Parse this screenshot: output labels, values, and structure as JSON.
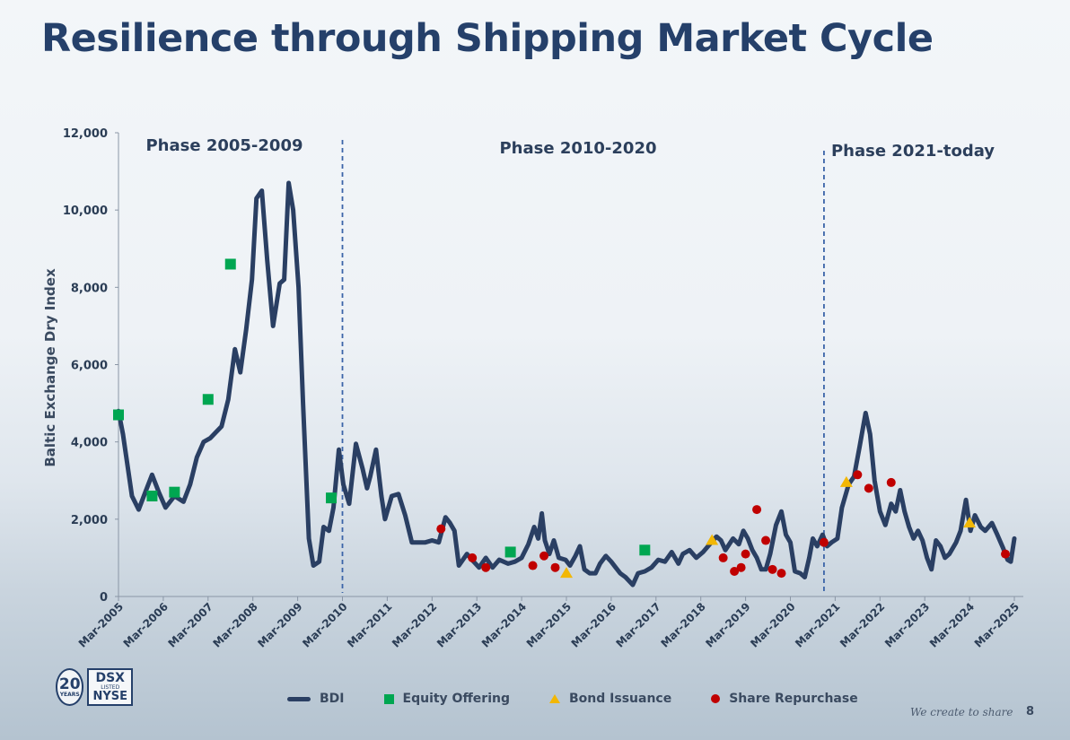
{
  "slide": {
    "title": "Resilience through Shipping Market Cycle",
    "footer_tagline": "We create to share",
    "page_number": "8"
  },
  "logo": {
    "number": "20",
    "years_label": "YEARS",
    "ticker": "DSX",
    "listed_label": "LISTED",
    "exchange": "NYSE"
  },
  "legend": [
    {
      "label": "BDI",
      "icon": "line-swatch"
    },
    {
      "label": "Equity Offering",
      "icon": "green-square"
    },
    {
      "label": "Bond Issuance",
      "icon": "yellow-triangle"
    },
    {
      "label": "Share Repurchase",
      "icon": "red-circle"
    }
  ],
  "colors": {
    "bdi_line": "#2a3f63",
    "equity": "#00a651",
    "bond": "#f2b705",
    "repurchase": "#c00000",
    "phase_divider": "#3b64a8"
  },
  "chart_data": {
    "type": "line",
    "title": "",
    "xlabel": "",
    "ylabel": "Baltic Exchange Dry Index",
    "xlim": [
      2005,
      2025
    ],
    "ylim": [
      0,
      12000
    ],
    "yticks": [
      0,
      2000,
      4000,
      6000,
      8000,
      10000,
      12000
    ],
    "ytick_labels": [
      "0",
      "2,000",
      "4,000",
      "6,000",
      "8,000",
      "10,000",
      "12,000"
    ],
    "xticks": [
      2005,
      2006,
      2007,
      2008,
      2009,
      2010,
      2011,
      2012,
      2013,
      2014,
      2015,
      2016,
      2017,
      2018,
      2019,
      2020,
      2021,
      2022,
      2023,
      2024,
      2025
    ],
    "xtick_labels": [
      "Mar-2005",
      "Mar-2006",
      "Mar-2007",
      "Mar-2008",
      "Mar-2009",
      "Mar-2010",
      "Mar-2011",
      "Mar-2012",
      "Mar-2013",
      "Mar-2014",
      "Mar-2015",
      "Mar-2016",
      "Mar-2017",
      "Mar-2018",
      "Mar-2019",
      "Mar-2020",
      "Mar-2021",
      "Mar-2022",
      "Mar-2023",
      "Mar-2024",
      "Mar-2025"
    ],
    "phases": [
      {
        "label": "Phase 2005-2009",
        "start": 2005.0,
        "end": 2010.0
      },
      {
        "label": "Phase 2010-2020",
        "start": 2010.0,
        "end": 2020.75
      },
      {
        "label": "Phase 2021-today",
        "start": 2020.75,
        "end": 2025.0
      }
    ],
    "phase_dividers": [
      2010.0,
      2020.75
    ],
    "series": [
      {
        "name": "BDI",
        "points": [
          [
            2005.0,
            4800
          ],
          [
            2005.1,
            4200
          ],
          [
            2005.3,
            2600
          ],
          [
            2005.45,
            2250
          ],
          [
            2005.6,
            2700
          ],
          [
            2005.75,
            3150
          ],
          [
            2005.9,
            2700
          ],
          [
            2006.05,
            2300
          ],
          [
            2006.25,
            2600
          ],
          [
            2006.45,
            2450
          ],
          [
            2006.6,
            2900
          ],
          [
            2006.75,
            3600
          ],
          [
            2006.9,
            4000
          ],
          [
            2007.05,
            4100
          ],
          [
            2007.3,
            4400
          ],
          [
            2007.45,
            5100
          ],
          [
            2007.6,
            6400
          ],
          [
            2007.72,
            5800
          ],
          [
            2007.85,
            6900
          ],
          [
            2007.98,
            8200
          ],
          [
            2008.08,
            10300
          ],
          [
            2008.2,
            10500
          ],
          [
            2008.32,
            8700
          ],
          [
            2008.45,
            7000
          ],
          [
            2008.6,
            8100
          ],
          [
            2008.7,
            8200
          ],
          [
            2008.8,
            10700
          ],
          [
            2008.9,
            10000
          ],
          [
            2009.02,
            8000
          ],
          [
            2009.12,
            5000
          ],
          [
            2009.25,
            1500
          ],
          [
            2009.35,
            800
          ],
          [
            2009.48,
            900
          ],
          [
            2009.58,
            1800
          ],
          [
            2009.7,
            1700
          ],
          [
            2009.8,
            2300
          ],
          [
            2009.92,
            3800
          ],
          [
            2010.02,
            2900
          ],
          [
            2010.15,
            2400
          ],
          [
            2010.3,
            3950
          ],
          [
            2010.45,
            3300
          ],
          [
            2010.55,
            2800
          ],
          [
            2010.62,
            3100
          ],
          [
            2010.75,
            3800
          ],
          [
            2010.87,
            2600
          ],
          [
            2010.95,
            2000
          ],
          [
            2011.1,
            2600
          ],
          [
            2011.25,
            2650
          ],
          [
            2011.4,
            2100
          ],
          [
            2011.55,
            1400
          ],
          [
            2011.7,
            1400
          ],
          [
            2011.85,
            1400
          ],
          [
            2012.0,
            1450
          ],
          [
            2012.15,
            1400
          ],
          [
            2012.3,
            2050
          ],
          [
            2012.4,
            1900
          ],
          [
            2012.5,
            1700
          ],
          [
            2012.6,
            800
          ],
          [
            2012.78,
            1100
          ],
          [
            2012.93,
            900
          ],
          [
            2013.05,
            750
          ],
          [
            2013.2,
            1000
          ],
          [
            2013.35,
            750
          ],
          [
            2013.5,
            950
          ],
          [
            2013.7,
            850
          ],
          [
            2013.85,
            900
          ],
          [
            2014.0,
            1000
          ],
          [
            2014.15,
            1350
          ],
          [
            2014.28,
            1800
          ],
          [
            2014.37,
            1500
          ],
          [
            2014.45,
            2150
          ],
          [
            2014.52,
            1450
          ],
          [
            2014.62,
            1100
          ],
          [
            2014.72,
            1450
          ],
          [
            2014.83,
            1000
          ],
          [
            2014.98,
            950
          ],
          [
            2015.08,
            800
          ],
          [
            2015.2,
            1050
          ],
          [
            2015.3,
            1300
          ],
          [
            2015.4,
            700
          ],
          [
            2015.52,
            600
          ],
          [
            2015.65,
            600
          ],
          [
            2015.75,
            850
          ],
          [
            2015.88,
            1050
          ],
          [
            2016.0,
            900
          ],
          [
            2016.1,
            750
          ],
          [
            2016.2,
            600
          ],
          [
            2016.32,
            500
          ],
          [
            2016.48,
            300
          ],
          [
            2016.6,
            600
          ],
          [
            2016.75,
            650
          ],
          [
            2016.9,
            750
          ],
          [
            2017.05,
            950
          ],
          [
            2017.2,
            900
          ],
          [
            2017.35,
            1150
          ],
          [
            2017.5,
            850
          ],
          [
            2017.6,
            1100
          ],
          [
            2017.75,
            1200
          ],
          [
            2017.9,
            1000
          ],
          [
            2018.05,
            1150
          ],
          [
            2018.2,
            1350
          ],
          [
            2018.35,
            1550
          ],
          [
            2018.45,
            1450
          ],
          [
            2018.55,
            1200
          ],
          [
            2018.72,
            1500
          ],
          [
            2018.85,
            1350
          ],
          [
            2018.95,
            1700
          ],
          [
            2019.05,
            1500
          ],
          [
            2019.15,
            1200
          ],
          [
            2019.25,
            1000
          ],
          [
            2019.35,
            700
          ],
          [
            2019.45,
            700
          ],
          [
            2019.55,
            1100
          ],
          [
            2019.68,
            1850
          ],
          [
            2019.8,
            2200
          ],
          [
            2019.9,
            1600
          ],
          [
            2020.0,
            1400
          ],
          [
            2020.1,
            650
          ],
          [
            2020.22,
            600
          ],
          [
            2020.32,
            500
          ],
          [
            2020.42,
            1000
          ],
          [
            2020.5,
            1500
          ],
          [
            2020.6,
            1300
          ],
          [
            2020.72,
            1600
          ],
          [
            2020.82,
            1300
          ],
          [
            2020.92,
            1400
          ],
          [
            2021.05,
            1500
          ],
          [
            2021.15,
            2300
          ],
          [
            2021.3,
            2900
          ],
          [
            2021.42,
            3100
          ],
          [
            2021.55,
            3900
          ],
          [
            2021.68,
            4750
          ],
          [
            2021.78,
            4200
          ],
          [
            2021.88,
            3000
          ],
          [
            2022.0,
            2200
          ],
          [
            2022.12,
            1850
          ],
          [
            2022.25,
            2400
          ],
          [
            2022.35,
            2200
          ],
          [
            2022.45,
            2750
          ],
          [
            2022.55,
            2200
          ],
          [
            2022.65,
            1800
          ],
          [
            2022.75,
            1500
          ],
          [
            2022.85,
            1700
          ],
          [
            2022.95,
            1450
          ],
          [
            2023.05,
            1000
          ],
          [
            2023.15,
            700
          ],
          [
            2023.25,
            1450
          ],
          [
            2023.35,
            1300
          ],
          [
            2023.45,
            1000
          ],
          [
            2023.55,
            1100
          ],
          [
            2023.7,
            1400
          ],
          [
            2023.8,
            1700
          ],
          [
            2023.92,
            2500
          ],
          [
            2024.02,
            1700
          ],
          [
            2024.12,
            2100
          ],
          [
            2024.25,
            1800
          ],
          [
            2024.35,
            1700
          ],
          [
            2024.5,
            1900
          ],
          [
            2024.62,
            1600
          ],
          [
            2024.75,
            1250
          ],
          [
            2024.85,
            950
          ],
          [
            2024.92,
            900
          ],
          [
            2025.0,
            1500
          ]
        ]
      }
    ],
    "events": {
      "equity_offering": [
        [
          2005.0,
          4700
        ],
        [
          2005.75,
          2600
        ],
        [
          2006.25,
          2700
        ],
        [
          2007.0,
          5100
        ],
        [
          2007.5,
          8600
        ],
        [
          2009.75,
          2550
        ],
        [
          2013.75,
          1150
        ],
        [
          2016.75,
          1200
        ]
      ],
      "bond_issuance": [
        [
          2015.0,
          600
        ],
        [
          2018.25,
          1450
        ],
        [
          2021.25,
          2950
        ],
        [
          2024.0,
          1900
        ]
      ],
      "share_repurchase": [
        [
          2012.2,
          1750
        ],
        [
          2012.9,
          1000
        ],
        [
          2013.2,
          750
        ],
        [
          2014.25,
          800
        ],
        [
          2014.5,
          1050
        ],
        [
          2014.75,
          750
        ],
        [
          2018.5,
          1000
        ],
        [
          2018.75,
          650
        ],
        [
          2018.9,
          750
        ],
        [
          2019.0,
          1100
        ],
        [
          2019.25,
          2250
        ],
        [
          2019.45,
          1450
        ],
        [
          2019.6,
          700
        ],
        [
          2019.8,
          600
        ],
        [
          2020.75,
          1400
        ],
        [
          2021.5,
          3150
        ],
        [
          2021.75,
          2800
        ],
        [
          2022.25,
          2950
        ],
        [
          2024.8,
          1100
        ]
      ]
    }
  }
}
